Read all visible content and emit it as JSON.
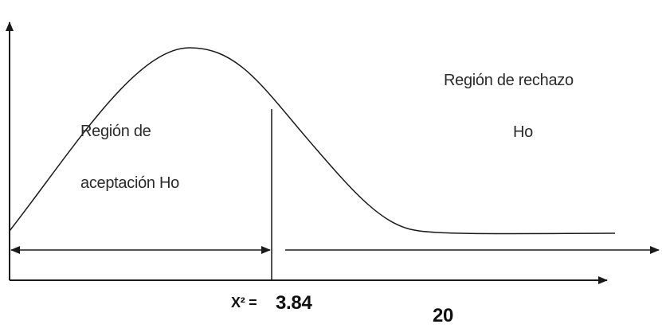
{
  "labels": {
    "acceptance_line1": "Región de",
    "acceptance_line2": "aceptación Ho",
    "rejection_line1": "Región de rechazo",
    "rejection_line2": "Ho",
    "chi_symbol": "X² =",
    "critical_value": "3.84",
    "axis_end_value": "20"
  },
  "colors": {
    "lines": "#1a1a1a",
    "text": "#2b2b2b",
    "background": "#ffffff"
  }
}
